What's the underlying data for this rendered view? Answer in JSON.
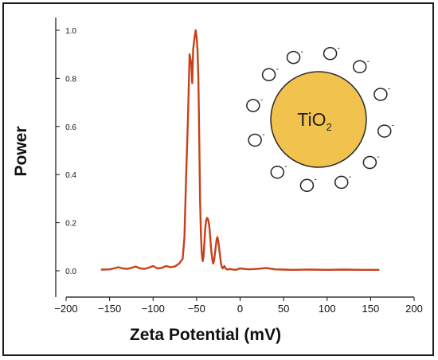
{
  "chart_data": {
    "type": "line",
    "xlabel": "Zeta Potential (mV)",
    "ylabel": "Power",
    "xlim": [
      -200,
      200
    ],
    "ylim": [
      0,
      1.0
    ],
    "xticks": [
      -200,
      -150,
      -100,
      -50,
      0,
      50,
      100,
      150,
      200
    ],
    "xtick_labels": [
      "−200",
      "−150",
      "−100",
      "−50",
      "0",
      "50",
      "100",
      "150",
      "200"
    ],
    "yticks": [
      0,
      0.2,
      0.4,
      0.6,
      0.8,
      1.0
    ],
    "ytick_labels": [
      "0.0",
      "0.2",
      "0.4",
      "0.6",
      "0.8",
      "1.0"
    ],
    "line_color": "#c8401a",
    "grid": false,
    "series": [
      {
        "x": [
          -160,
          -150,
          -145,
          -140,
          -135,
          -130,
          -125,
          -120,
          -115,
          -110,
          -105,
          -100,
          -95,
          -90,
          -85,
          -80,
          -75,
          -70,
          -66,
          -64,
          -62,
          -60,
          -58,
          -56,
          -55,
          -54,
          -53,
          -52,
          -51,
          -50,
          -49,
          -48,
          -47,
          -46,
          -45,
          -44,
          -43,
          -42,
          -41,
          -40,
          -39,
          -38,
          -37,
          -36,
          -35,
          -34,
          -33,
          -32,
          -31,
          -30,
          -29,
          -28,
          -27,
          -26,
          -25,
          -24,
          -23,
          -22,
          -21,
          -20,
          -19,
          -18,
          -17,
          -16,
          -15,
          -14,
          -12,
          -10,
          -5,
          0,
          10,
          20,
          30,
          40,
          50,
          60,
          80,
          100,
          120,
          140,
          160
        ],
        "y": [
          0.005,
          0.006,
          0.01,
          0.015,
          0.01,
          0.008,
          0.012,
          0.018,
          0.01,
          0.008,
          0.013,
          0.02,
          0.01,
          0.012,
          0.02,
          0.015,
          0.018,
          0.03,
          0.05,
          0.14,
          0.4,
          0.62,
          0.9,
          0.86,
          0.78,
          0.92,
          0.95,
          0.98,
          1.0,
          0.97,
          0.92,
          0.8,
          0.55,
          0.3,
          0.15,
          0.07,
          0.04,
          0.06,
          0.12,
          0.18,
          0.21,
          0.22,
          0.215,
          0.2,
          0.17,
          0.12,
          0.08,
          0.05,
          0.03,
          0.04,
          0.07,
          0.1,
          0.13,
          0.14,
          0.12,
          0.09,
          0.06,
          0.03,
          0.015,
          0.01,
          0.015,
          0.02,
          0.012,
          0.008,
          0.006,
          0.005,
          0.008,
          0.006,
          0.004,
          0.01,
          0.006,
          0.008,
          0.012,
          0.006,
          0.005,
          0.004,
          0.005,
          0.004,
          0.005,
          0.004,
          0.004
        ]
      }
    ],
    "inset": {
      "core_label": "TiO",
      "core_subscript": "2",
      "ligand_labels": [
        "O",
        "O",
        "O",
        "O",
        "O",
        "O",
        "O",
        "O",
        "O",
        "O",
        "O",
        "O"
      ],
      "charge_label": "-",
      "core_color": "#f2c24f"
    }
  }
}
